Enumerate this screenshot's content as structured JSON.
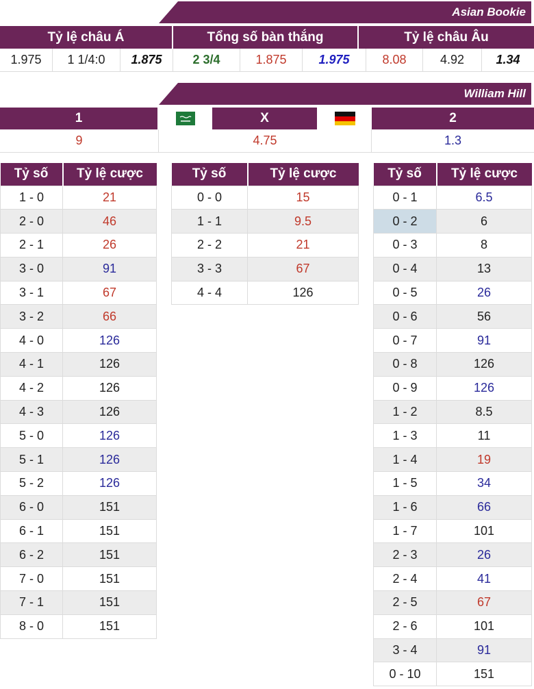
{
  "colors": {
    "header_bg": "#6b2558",
    "red": "#c0392b",
    "blue": "#2a2a9a",
    "green": "#2c6e2c",
    "highlight": "#cddce6"
  },
  "asian": {
    "banner": "Asian Bookie",
    "headers": [
      "Tỷ lệ châu Á",
      "Tổng số bàn thắng",
      "Tỷ lệ châu Âu"
    ],
    "values": [
      {
        "v": "1.975",
        "c": "c-black"
      },
      {
        "v": "1 1/4:0",
        "c": "c-black"
      },
      {
        "v": "1.875",
        "c": "c-bb"
      },
      {
        "v": "2 3/4",
        "c": "c-green"
      },
      {
        "v": "1.875",
        "c": "c-red"
      },
      {
        "v": "1.975",
        "c": "c-bblue"
      },
      {
        "v": "8.08",
        "c": "c-red"
      },
      {
        "v": "4.92",
        "c": "c-black"
      },
      {
        "v": "1.34",
        "c": "c-bb"
      }
    ]
  },
  "william": {
    "banner": "William Hill",
    "home_label": "1",
    "draw_label": "X",
    "away_label": "2",
    "home_flag": "saudi-arabia-flag-icon",
    "away_flag": "germany-flag-icon",
    "home_odds": "9",
    "draw_odds": "4.75",
    "away_odds": "1.3"
  },
  "score_tables": {
    "col_score": "Tỷ số",
    "col_odds": "Tỷ lệ cược",
    "home": [
      {
        "s": "1 - 0",
        "o": "21",
        "c": "c-red"
      },
      {
        "s": "2 - 0",
        "o": "46",
        "c": "c-red"
      },
      {
        "s": "2 - 1",
        "o": "26",
        "c": "c-red"
      },
      {
        "s": "3 - 0",
        "o": "91",
        "c": "c-blue"
      },
      {
        "s": "3 - 1",
        "o": "67",
        "c": "c-red"
      },
      {
        "s": "3 - 2",
        "o": "66",
        "c": "c-red"
      },
      {
        "s": "4 - 0",
        "o": "126",
        "c": "c-blue"
      },
      {
        "s": "4 - 1",
        "o": "126",
        "c": "c-black"
      },
      {
        "s": "4 - 2",
        "o": "126",
        "c": "c-black"
      },
      {
        "s": "4 - 3",
        "o": "126",
        "c": "c-black"
      },
      {
        "s": "5 - 0",
        "o": "126",
        "c": "c-blue"
      },
      {
        "s": "5 - 1",
        "o": "126",
        "c": "c-blue"
      },
      {
        "s": "5 - 2",
        "o": "126",
        "c": "c-blue"
      },
      {
        "s": "6 - 0",
        "o": "151",
        "c": "c-black"
      },
      {
        "s": "6 - 1",
        "o": "151",
        "c": "c-black"
      },
      {
        "s": "6 - 2",
        "o": "151",
        "c": "c-black"
      },
      {
        "s": "7 - 0",
        "o": "151",
        "c": "c-black"
      },
      {
        "s": "7 - 1",
        "o": "151",
        "c": "c-black"
      },
      {
        "s": "8 - 0",
        "o": "151",
        "c": "c-black"
      }
    ],
    "draw": [
      {
        "s": "0 - 0",
        "o": "15",
        "c": "c-red"
      },
      {
        "s": "1 - 1",
        "o": "9.5",
        "c": "c-red"
      },
      {
        "s": "2 - 2",
        "o": "21",
        "c": "c-red"
      },
      {
        "s": "3 - 3",
        "o": "67",
        "c": "c-red"
      },
      {
        "s": "4 - 4",
        "o": "126",
        "c": "c-black"
      }
    ],
    "away": [
      {
        "s": "0 - 1",
        "o": "6.5",
        "c": "c-blue"
      },
      {
        "s": "0 - 2",
        "o": "6",
        "c": "c-black",
        "hl": true
      },
      {
        "s": "0 - 3",
        "o": "8",
        "c": "c-black"
      },
      {
        "s": "0 - 4",
        "o": "13",
        "c": "c-black"
      },
      {
        "s": "0 - 5",
        "o": "26",
        "c": "c-blue"
      },
      {
        "s": "0 - 6",
        "o": "56",
        "c": "c-black"
      },
      {
        "s": "0 - 7",
        "o": "91",
        "c": "c-blue"
      },
      {
        "s": "0 - 8",
        "o": "126",
        "c": "c-black"
      },
      {
        "s": "0 - 9",
        "o": "126",
        "c": "c-blue"
      },
      {
        "s": "1 - 2",
        "o": "8.5",
        "c": "c-black"
      },
      {
        "s": "1 - 3",
        "o": "11",
        "c": "c-black"
      },
      {
        "s": "1 - 4",
        "o": "19",
        "c": "c-red"
      },
      {
        "s": "1 - 5",
        "o": "34",
        "c": "c-blue"
      },
      {
        "s": "1 - 6",
        "o": "66",
        "c": "c-blue"
      },
      {
        "s": "1 - 7",
        "o": "101",
        "c": "c-black"
      },
      {
        "s": "2 - 3",
        "o": "26",
        "c": "c-blue"
      },
      {
        "s": "2 - 4",
        "o": "41",
        "c": "c-blue"
      },
      {
        "s": "2 - 5",
        "o": "67",
        "c": "c-red"
      },
      {
        "s": "2 - 6",
        "o": "101",
        "c": "c-black"
      },
      {
        "s": "3 - 4",
        "o": "91",
        "c": "c-blue"
      },
      {
        "s": "0 - 10",
        "o": "151",
        "c": "c-black"
      }
    ]
  }
}
